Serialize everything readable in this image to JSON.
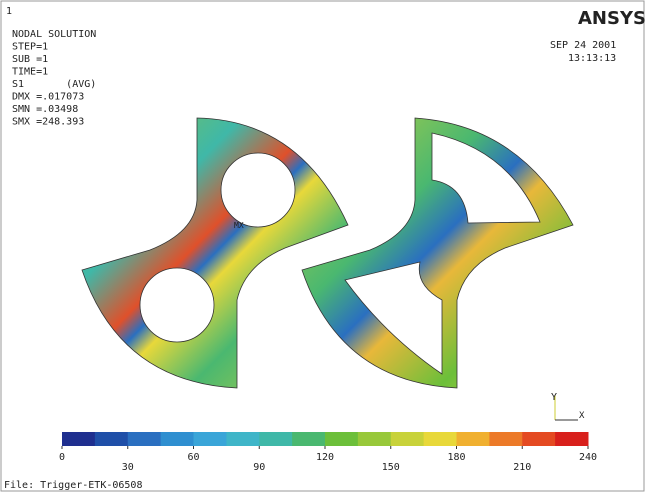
{
  "window": {
    "number": "1",
    "logo": "ANSYS",
    "date": "SEP 24 2001",
    "time": "13:13:13",
    "file": "File: Trigger-ETK-06508"
  },
  "info": [
    "NODAL SOLUTION",
    "STEP=1",
    "SUB =1",
    "TIME=1",
    "S1       (AVG)",
    "DMX =.017073",
    "SMN =.03498",
    "SMX =248.393"
  ],
  "markers": {
    "max": "MX"
  },
  "triad": {
    "y": "Y",
    "x": "X"
  },
  "legend": {
    "ticks": [
      0,
      30,
      60,
      90,
      120,
      150,
      180,
      210,
      240
    ],
    "colors": [
      "#1f2f8f",
      "#1f4fa8",
      "#2a6fc0",
      "#2f8fd0",
      "#3aa5d8",
      "#3fb5c8",
      "#3fb8a8",
      "#4ab870",
      "#6cbf3a",
      "#98c83a",
      "#c8d23a",
      "#e8d83a",
      "#f0b030",
      "#ec7a28",
      "#e44a22",
      "#d8201c"
    ]
  }
}
